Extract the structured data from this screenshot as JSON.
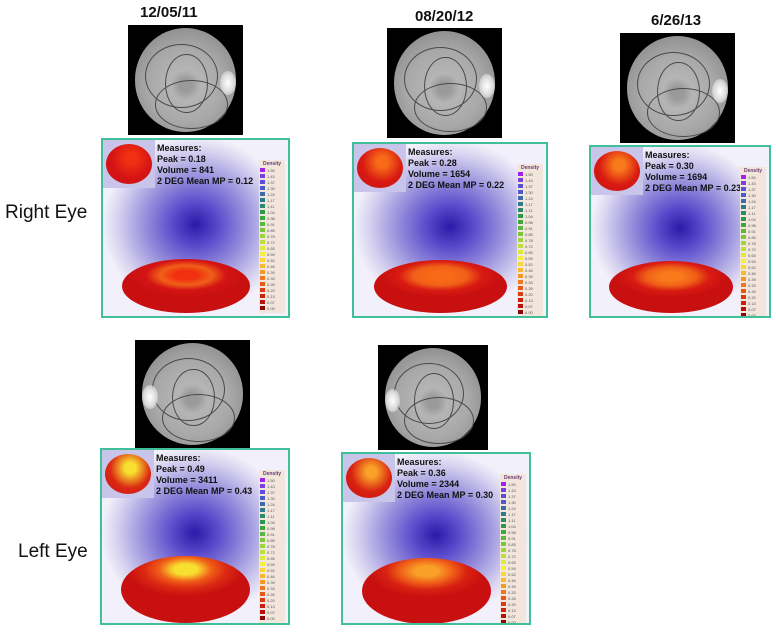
{
  "row_labels": {
    "right": "Right Eye",
    "left": "Left Eye"
  },
  "legend": {
    "title": "Density",
    "values": [
      "1.50",
      "1.43",
      "1.37",
      "1.30",
      "1.24",
      "1.17",
      "1.11",
      "1.04",
      "0.98",
      "0.91",
      "0.85",
      "0.78",
      "0.72",
      "0.65",
      "0.59",
      "0.52",
      "0.46",
      "0.39",
      "0.33",
      "0.26",
      "0.20",
      "0.13",
      "0.07",
      "0.00"
    ],
    "colors": [
      "#a020f0",
      "#7b3fe0",
      "#5a4fd8",
      "#4a5cc8",
      "#3f6aa8",
      "#2f7a8a",
      "#2a8a6a",
      "#2a9a4a",
      "#3aa83a",
      "#5ab83a",
      "#7ac83a",
      "#9ad83a",
      "#bce03a",
      "#dcea3a",
      "#f4f03a",
      "#f8d838",
      "#f8b830",
      "#f49828",
      "#ee7820",
      "#e65818",
      "#dc3a12",
      "#cc2010",
      "#b8100c",
      "#8a0808"
    ]
  },
  "panels": [
    {
      "eye": "right",
      "date": "12/05/11",
      "measures_label": "Measures:",
      "peak": "Peak = 0.18",
      "volume": "Volume = 841",
      "mean_mp": "2 DEG Mean MP = 0.12",
      "blob_color": "#d41414",
      "core_color": "#f03010"
    },
    {
      "eye": "right",
      "date": "08/20/12",
      "measures_label": "Measures:",
      "peak": "Peak = 0.28",
      "volume": "Volume = 1654",
      "mean_mp": "2 DEG Mean MP = 0.22",
      "blob_color": "#d81a12",
      "core_color": "#f86a18"
    },
    {
      "eye": "right",
      "date": "6/26/13",
      "measures_label": "Measures:",
      "peak": "Peak = 0.30",
      "volume": "Volume = 1694",
      "mean_mp": "2 DEG Mean MP = 0.23",
      "blob_color": "#d81a12",
      "core_color": "#f87a1a"
    },
    {
      "eye": "left",
      "date": "",
      "measures_label": "Measures:",
      "peak": "Peak = 0.49",
      "volume": "Volume = 3411",
      "mean_mp": "2 DEG Mean MP = 0.43",
      "blob_color": "#dc2a12",
      "core_color": "#f8e030"
    },
    {
      "eye": "left",
      "date": "",
      "measures_label": "Measures:",
      "peak": "Peak = 0.36",
      "volume": "Volume = 2344",
      "mean_mp": "2 DEG Mean MP = 0.30",
      "blob_color": "#d82212",
      "core_color": "#f8a028"
    }
  ]
}
